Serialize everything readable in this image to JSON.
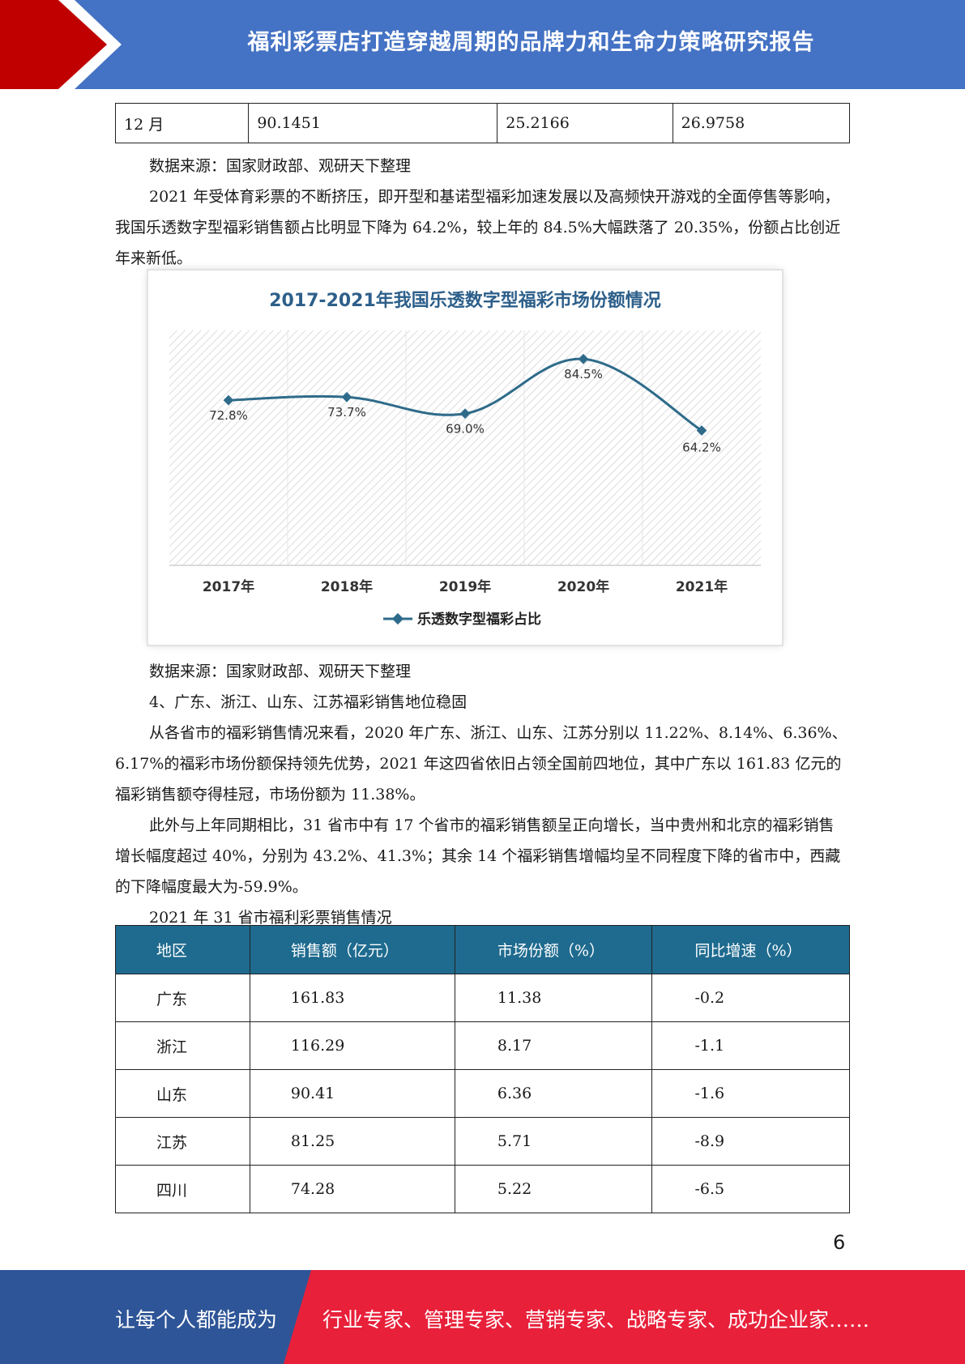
{
  "header": {
    "title": "福利彩票店打造穿越周期的品牌力和生命力策略研究报告"
  },
  "top_table": {
    "row": [
      "12 月",
      "90.1451",
      "25.2166",
      "26.9758"
    ]
  },
  "paragraphs": {
    "source1": "数据来源：国家财政部、观研天下整理",
    "para1": "2021 年受体育彩票的不断挤压，即开型和基诺型福彩加速发展以及高频快开游戏的全面停售等影响，我国乐透数字型福彩销售额占比明显下降为 64.2%，较上年的 84.5%大幅跌落了 20.35%，份额占比创近年来新低。",
    "source2": "数据来源：国家财政部、观研天下整理",
    "heading4": "4、广东、浙江、山东、江苏福彩销售地位稳固",
    "para2": "从各省市的福彩销售情况来看，2020 年广东、浙江、山东、江苏分别以 11.22%、8.14%、6.36%、6.17%的福彩市场份额保持领先优势，2021 年这四省依旧占领全国前四地位，其中广东以 161.83 亿元的福彩销售额夺得桂冠，市场份额为 11.38%。",
    "para3": "此外与上年同期相比，31 省市中有 17 个省市的福彩销售额呈正向增长，当中贵州和北京的福彩销售增长幅度超过 40%，分别为 43.2%、41.3%；其余 14 个福彩销售增幅均呈不同程度下降的省市中，西藏的下降幅度最大为-59.9%。",
    "table_caption": "2021 年 31 省市福利彩票销售情况"
  },
  "chart_data": {
    "type": "line",
    "title": "2017-2021年我国乐透数字型福彩市场份额情况",
    "categories": [
      "2017年",
      "2018年",
      "2019年",
      "2020年",
      "2021年"
    ],
    "series": [
      {
        "name": "乐透数字型福彩占比",
        "values": [
          72.8,
          73.7,
          69.0,
          84.5,
          64.2
        ],
        "labels": [
          "72.8%",
          "73.7%",
          "69.0%",
          "84.5%",
          "64.2%"
        ]
      }
    ],
    "xlabel": "",
    "ylabel": "",
    "ylim": [
      0,
      90
    ],
    "legend": "bottom",
    "grid": false,
    "colors": {
      "line": "#2e6b8a",
      "hatch": "#d4d4d4"
    }
  },
  "main_table": {
    "headers": [
      "地区",
      "销售额（亿元）",
      "市场份额（%）",
      "同比增速（%）"
    ],
    "rows": [
      [
        "广东",
        "161.83",
        "11.38",
        "-0.2"
      ],
      [
        "浙江",
        "116.29",
        "8.17",
        "-1.1"
      ],
      [
        "山东",
        "90.41",
        "6.36",
        "-1.6"
      ],
      [
        "江苏",
        "81.25",
        "5.71",
        "-8.9"
      ],
      [
        "四川",
        "74.28",
        "5.22",
        "-6.5"
      ]
    ]
  },
  "page_number": "6",
  "footer": {
    "left": "让每个人都能成为",
    "right": "行业专家、管理专家、营销专家、战略专家、成功企业家……"
  },
  "colors": {
    "header_blue": "#4472c4",
    "header_red": "#c00000",
    "table_header": "#1f6b8f",
    "footer_blue": "#2e5597",
    "footer_red": "#e8203a"
  }
}
